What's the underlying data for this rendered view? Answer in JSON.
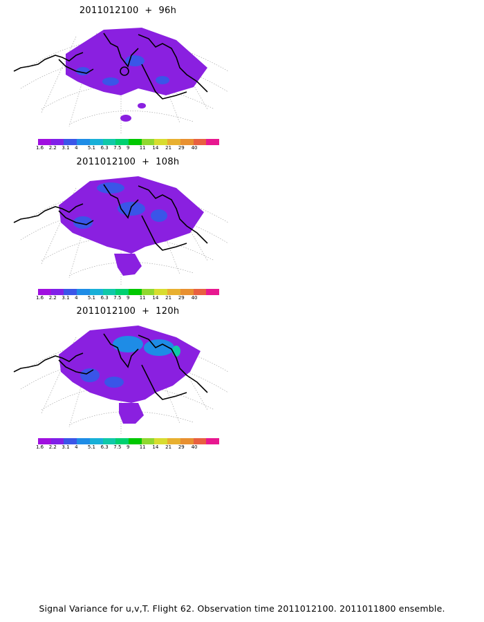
{
  "panels": [
    {
      "title": "2011012100  +  96h"
    },
    {
      "title": "2011012100  +  108h"
    },
    {
      "title": "2011012100  +  120h"
    }
  ],
  "colorbar": {
    "colors": [
      "#a010e0",
      "#8020e8",
      "#3a55e8",
      "#1e8ce6",
      "#18b0d8",
      "#10c8a8",
      "#00d070",
      "#00c800",
      "#90d830",
      "#d8dc30",
      "#e8b030",
      "#e89030",
      "#e86040",
      "#e81890"
    ],
    "labels": [
      "1.6",
      "2.2",
      "3.1",
      "4",
      "5.1",
      "6.3",
      "7.5",
      "9",
      "11",
      "14",
      "21",
      "29",
      "40"
    ]
  },
  "footer": "Signal Variance for u,v,T. Flight 62. Observation time 2011012100. 2011011800 ensemble."
}
